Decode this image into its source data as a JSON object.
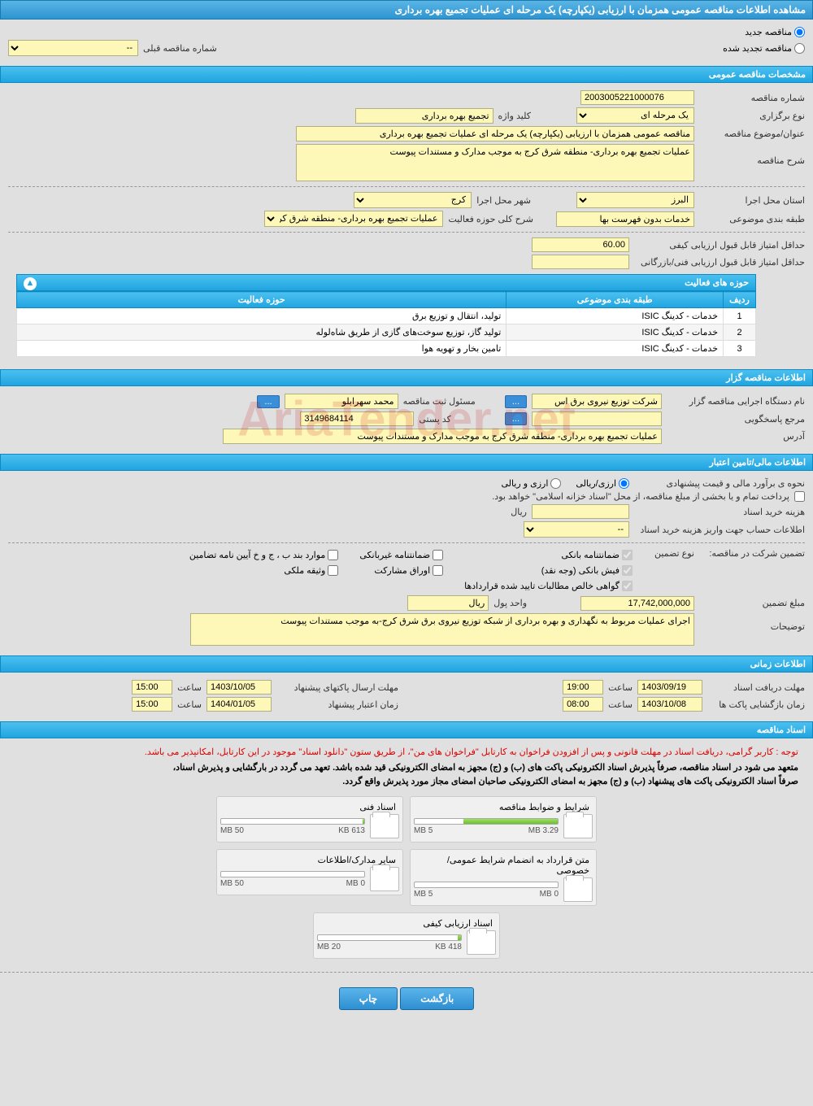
{
  "page_title": "مشاهده اطلاعات مناقصه عمومی همزمان با ارزیابی (یکپارچه) یک مرحله ای عملیات تجمیع بهره برداری",
  "tender_type": {
    "new_label": "مناقصه جدید",
    "renewed_label": "مناقصه تجدید شده",
    "prev_number_label": "شماره مناقصه قبلی",
    "prev_number_value": "--"
  },
  "general_spec": {
    "title": "مشخصات مناقصه عمومی",
    "number_label": "شماره مناقصه",
    "number_value": "2003005221000076",
    "holding_type_label": "نوع برگزاری",
    "holding_type_value": "یک مرحله ای",
    "keyword_label": "کلید واژه",
    "keyword_value": "تجمیع بهره برداری",
    "subject_label": "عنوان/موضوع مناقصه",
    "subject_value": "مناقصه عمومی همزمان با ارزیابی (یکپارچه) یک مرحله ای عملیات تجمیع بهره برداری",
    "description_label": "شرح مناقصه",
    "description_value": "عملیات تجمیع بهره برداری- منطقه شرق کرج به موجب مدارک و مستندات پیوست",
    "province_label": "استان محل اجرا",
    "province_value": "البرز",
    "city_label": "شهر محل اجرا",
    "city_value": "کرج",
    "category_label": "طبقه بندی موضوعی",
    "category_value": "خدمات بدون فهرست بها",
    "activity_scope_label": "شرح کلی حوزه فعالیت",
    "activity_scope_value": "عملیات تجمیع بهره برداری- منطقه شرق کرج",
    "min_quality_score_label": "حداقل امتیاز قابل قبول ارزیابی کیفی",
    "min_quality_score_value": "60.00",
    "min_tech_score_label": "حداقل امتیاز قابل قبول ارزیابی فنی/بازرگانی",
    "min_tech_score_value": ""
  },
  "activity_table": {
    "title": "حوزه های فعالیت",
    "headers": {
      "row": "ردیف",
      "category": "طبقه بندی موضوعی",
      "scope": "حوزه فعالیت"
    },
    "rows": [
      {
        "n": "1",
        "cat": "خدمات - کدینگ ISIC",
        "scope": "تولید، انتقال و توزیع برق"
      },
      {
        "n": "2",
        "cat": "خدمات - کدینگ ISIC",
        "scope": "تولید گاز، توزیع سوخت‌های گازی از طریق شاه‌لوله"
      },
      {
        "n": "3",
        "cat": "خدمات - کدینگ ISIC",
        "scope": "تامین بخار و تهویه هوا"
      }
    ]
  },
  "organizer": {
    "title": "اطلاعات مناقصه گزار",
    "org_label": "نام دستگاه اجرایی مناقصه گزار",
    "org_value": "شرکت توزیع نیروی برق اس",
    "responsible_label": "مسئول ثبت مناقصه",
    "responsible_value": "محمد سهرابلو",
    "contact_label": "مرجع پاسخگویی",
    "contact_value": "",
    "postal_label": "کد پستی",
    "postal_value": "3149684114",
    "address_label": "آدرس",
    "address_value": "عملیات تجمیع بهره برداری- منطقه شرق کرج به موجب مدارک و مستندات پیوست",
    "more_btn": "..."
  },
  "financial": {
    "title": "اطلاعات مالی/تامین اعتبار",
    "estimate_label": "نحوه ی برآورد مالی و قیمت پیشنهادی",
    "currency_fa": "ارزی/ریالی",
    "currency_both": "ارزی و ریالی",
    "treasury_note": "پرداخت تمام و یا بخشی از مبلغ مناقصه، از محل \"اسناد خزانه اسلامی\" خواهد بود.",
    "doc_cost_label": "هزینه خرید اسناد",
    "doc_cost_value": "",
    "doc_cost_unit": "ریال",
    "account_label": "اطلاعات حساب جهت واریز هزینه خرید اسناد",
    "account_value": "--"
  },
  "guarantee": {
    "label": "تضمین شرکت در مناقصه:",
    "type_label": "نوع تضمین",
    "types": {
      "bank_guarantee": "ضمانتنامه بانکی",
      "nonbank_guarantee": "ضمانتنامه غیربانکی",
      "cases_bcd": "موارد بند ب ، ج و خ آیین نامه تضامین",
      "cash": "فیش بانکی (وجه نقد)",
      "securities": "اوراق مشارکت",
      "property": "وثیقه ملکی",
      "contract_cert": "گواهی خالص مطالبات تایید شده قراردادها"
    },
    "amount_label": "مبلغ تضمین",
    "amount_value": "17,742,000,000",
    "unit_label": "واحد پول",
    "unit_value": "ریال",
    "notes_label": "توضیحات",
    "notes_value": "اجرای عملیات مربوط به نگهداری و بهره برداری از شبکه توزیع نیروی برق شرق کرج-به موجب مستندات پیوست"
  },
  "timing": {
    "title": "اطلاعات زمانی",
    "doc_receive_label": "مهلت دریافت اسناد",
    "doc_receive_date": "1403/09/19",
    "doc_receive_time": "19:00",
    "envelope_send_label": "مهلت ارسال پاکتهای پیشنهاد",
    "envelope_send_date": "1403/10/05",
    "envelope_send_time": "15:00",
    "opening_label": "زمان بازگشایی پاکت ها",
    "opening_date": "1403/10/08",
    "opening_time": "08:00",
    "validity_label": "زمان اعتبار پیشنهاد",
    "validity_date": "1404/01/05",
    "validity_time": "15:00",
    "time_label": "ساعت"
  },
  "documents": {
    "title": "اسناد مناقصه",
    "note1": "توجه : کاربر گرامی، دریافت اسناد در مهلت قانونی و پس از افزودن فراخوان به کارتابل \"فراخوان های من\"، از طریق ستون \"دانلود اسناد\" موجود در این کارتابل، امکانپذیر می باشد.",
    "note2": "متعهد می شود در اسناد مناقصه، صرفاً پذیرش اسناد الکترونیکی پاکت های (ب) و (ج) مجهز به امضای الکترونیکی قید شده باشد. تعهد می گردد در بارگشایی و پذیرش اسناد،",
    "note3": "صرفاً اسناد الکترونیکی پاکت های پیشنهاد (ب) و (ج) مجهز به امضای الکترونیکی صاحبان امضای مجاز مورد پذیرش واقع گردد.",
    "files": [
      {
        "title": "شرایط و ضوابط مناقصه",
        "used": "3.29 MB",
        "total": "5 MB",
        "pct": 66
      },
      {
        "title": "اسناد فنی",
        "used": "613 KB",
        "total": "50 MB",
        "pct": 1
      },
      {
        "title": "متن قرارداد به انضمام شرایط عمومی/خصوصی",
        "used": "0 MB",
        "total": "5 MB",
        "pct": 0
      },
      {
        "title": "سایر مدارک/اطلاعات",
        "used": "0 MB",
        "total": "50 MB",
        "pct": 0
      },
      {
        "title": "اسناد ارزیابی کیفی",
        "used": "418 KB",
        "total": "20 MB",
        "pct": 2
      }
    ]
  },
  "buttons": {
    "back": "بازگشت",
    "print": "چاپ"
  },
  "colors": {
    "header_bg": "#3ba5db",
    "section_bg": "#2fb0e8",
    "field_bg": "#fef8b8",
    "field_border": "#b0b080",
    "page_bg": "#e0e0e0",
    "button_bg": "#3b8ed8",
    "note_red": "#d00000",
    "prog_fill": "#7cd040"
  },
  "watermark": "AriaTender.net"
}
